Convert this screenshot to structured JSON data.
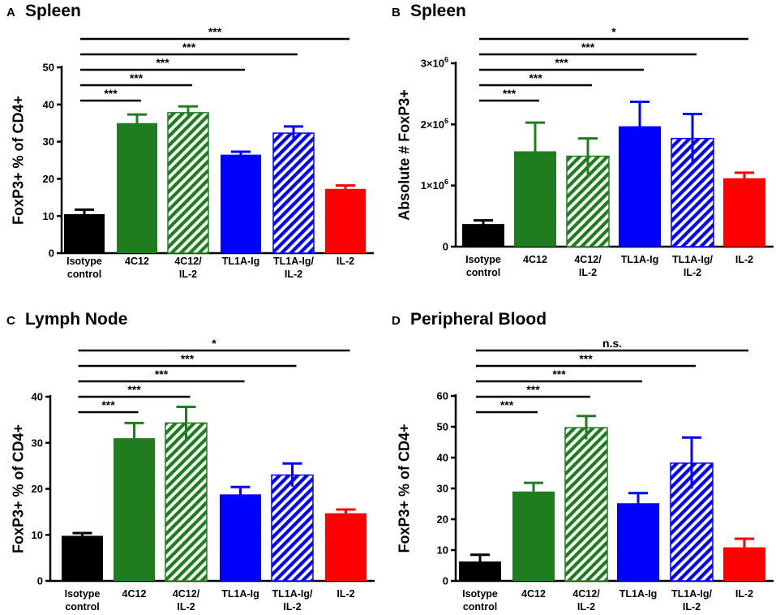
{
  "colors": {
    "black": "#000000",
    "green": "#1f7d1f",
    "blue": "#0000ff",
    "red": "#ff0000",
    "white": "#ffffff"
  },
  "chart_data": [
    {
      "letter": "A",
      "title": "Spleen",
      "type": "bar",
      "ylabel": "FoxP3+ % of CD4+",
      "ylim": [
        0,
        50
      ],
      "yticks": [
        "0",
        "10",
        "20",
        "30",
        "40",
        "50"
      ],
      "yticksValues": [
        0,
        10,
        20,
        30,
        40,
        50
      ],
      "categories": [
        [
          "Isotype",
          "control"
        ],
        [
          "4C12"
        ],
        [
          "4C12/",
          "IL-2"
        ],
        [
          "TL1A-Ig"
        ],
        [
          "TL1A-Ig/",
          "IL-2"
        ],
        [
          "IL-2"
        ]
      ],
      "values": [
        10.5,
        35,
        37.8,
        26.5,
        32.3,
        17.3
      ],
      "errors": [
        1.2,
        2.3,
        1.7,
        0.8,
        1.8,
        0.9
      ],
      "colors": [
        "black",
        "green",
        "green",
        "blue",
        "blue",
        "red"
      ],
      "hatched": [
        false,
        false,
        true,
        false,
        true,
        false
      ],
      "significance": [
        {
          "from": 0,
          "to": 1,
          "label": "***"
        },
        {
          "from": 0,
          "to": 2,
          "label": "***"
        },
        {
          "from": 0,
          "to": 3,
          "label": "***"
        },
        {
          "from": 0,
          "to": 4,
          "label": "***"
        },
        {
          "from": 0,
          "to": 5,
          "label": "***"
        }
      ]
    },
    {
      "letter": "B",
      "title": "Spleen",
      "type": "bar",
      "ylabel": "Absolute # FoxP3+",
      "ylim": [
        0,
        3000000
      ],
      "yticks": [
        [
          "0"
        ],
        [
          "1×10",
          "6"
        ],
        [
          "2×10",
          "6"
        ],
        [
          "3×10",
          "6"
        ]
      ],
      "yticksValues": [
        0,
        1000000,
        2000000,
        3000000
      ],
      "categories": [
        [
          "Isotype",
          "control"
        ],
        [
          "4C12"
        ],
        [
          "4C12/",
          "IL-2"
        ],
        [
          "TL1A-Ig"
        ],
        [
          "TL1A-Ig/",
          "IL-2"
        ],
        [
          "IL-2"
        ]
      ],
      "values": [
        370000,
        1560000,
        1480000,
        1970000,
        1770000,
        1120000
      ],
      "errors": [
        60000,
        470000,
        290000,
        400000,
        400000,
        90000
      ],
      "colors": [
        "black",
        "green",
        "green",
        "blue",
        "blue",
        "red"
      ],
      "hatched": [
        false,
        false,
        true,
        false,
        true,
        false
      ],
      "significance": [
        {
          "from": 0,
          "to": 1,
          "label": "***"
        },
        {
          "from": 0,
          "to": 2,
          "label": "***"
        },
        {
          "from": 0,
          "to": 3,
          "label": "***"
        },
        {
          "from": 0,
          "to": 4,
          "label": "***"
        },
        {
          "from": 0,
          "to": 5,
          "label": "*"
        }
      ]
    },
    {
      "letter": "C",
      "title": "Lymph Node",
      "type": "bar",
      "ylabel": "FoxP3+ % of CD4+",
      "ylim": [
        0,
        40
      ],
      "yticks": [
        "0",
        "10",
        "20",
        "30",
        "40"
      ],
      "yticksValues": [
        0,
        10,
        20,
        30,
        40
      ],
      "categories": [
        [
          "Isotype",
          "control"
        ],
        [
          "4C12"
        ],
        [
          "4C12/",
          "IL-2"
        ],
        [
          "TL1A-Ig"
        ],
        [
          "TL1A-Ig/",
          "IL-2"
        ],
        [
          "IL-2"
        ]
      ],
      "values": [
        9.8,
        31,
        34.3,
        18.8,
        23,
        14.7
      ],
      "errors": [
        0.6,
        3.3,
        3.5,
        1.6,
        2.5,
        0.8
      ],
      "colors": [
        "black",
        "green",
        "green",
        "blue",
        "blue",
        "red"
      ],
      "hatched": [
        false,
        false,
        true,
        false,
        true,
        false
      ],
      "significance": [
        {
          "from": 0,
          "to": 1,
          "label": "***"
        },
        {
          "from": 0,
          "to": 2,
          "label": "***"
        },
        {
          "from": 0,
          "to": 3,
          "label": "***"
        },
        {
          "from": 0,
          "to": 4,
          "label": "***"
        },
        {
          "from": 0,
          "to": 5,
          "label": "*"
        }
      ]
    },
    {
      "letter": "D",
      "title": "Peripheral Blood",
      "type": "bar",
      "ylabel": "FoxP3+ % of CD4+",
      "ylim": [
        0,
        60
      ],
      "yticks": [
        "0",
        "10",
        "20",
        "30",
        "40",
        "50",
        "60"
      ],
      "yticksValues": [
        0,
        10,
        20,
        30,
        40,
        50,
        60
      ],
      "categories": [
        [
          "Isotype",
          "control"
        ],
        [
          "4C12"
        ],
        [
          "4C12/",
          "IL-2"
        ],
        [
          "TL1A-Ig"
        ],
        [
          "TL1A-Ig/",
          "IL-2"
        ],
        [
          "IL-2"
        ]
      ],
      "values": [
        6.3,
        29,
        49.7,
        25.2,
        38.2,
        10.9
      ],
      "errors": [
        2.2,
        2.8,
        3.8,
        3.3,
        8.3,
        2.8
      ],
      "colors": [
        "black",
        "green",
        "green",
        "blue",
        "blue",
        "red"
      ],
      "hatched": [
        false,
        false,
        true,
        false,
        true,
        false
      ],
      "significance": [
        {
          "from": 0,
          "to": 1,
          "label": "***"
        },
        {
          "from": 0,
          "to": 2,
          "label": "***"
        },
        {
          "from": 0,
          "to": 3,
          "label": "***"
        },
        {
          "from": 0,
          "to": 4,
          "label": "***"
        },
        {
          "from": 0,
          "to": 5,
          "label": "n.s."
        }
      ]
    }
  ]
}
